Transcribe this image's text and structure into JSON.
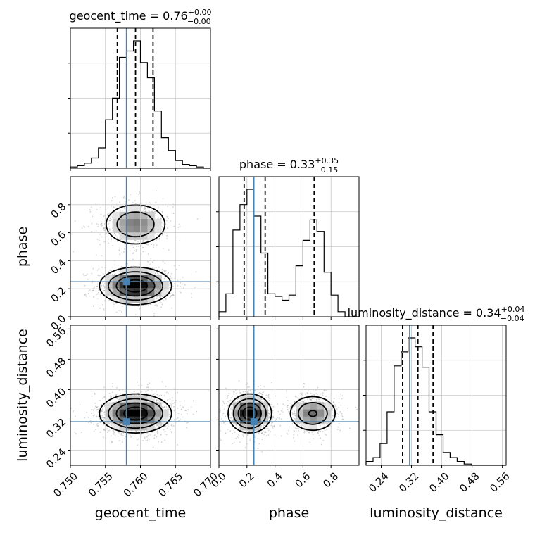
{
  "chart_data": {
    "type": "corner",
    "parameters": [
      "geocent_time",
      "phase",
      "luminosity_distance"
    ],
    "titles": [
      {
        "name": "geocent_time",
        "median": "0.76",
        "plus": "+0.00",
        "minus": "−0.00"
      },
      {
        "name": "phase",
        "median": "0.33",
        "plus": "+0.35",
        "minus": "−0.15"
      },
      {
        "name": "luminosity_distance",
        "median": "0.34",
        "plus": "+0.04",
        "minus": "−0.04"
      }
    ],
    "ranges": [
      [
        0.75,
        0.77
      ],
      [
        0.0,
        1.0
      ],
      [
        0.2,
        0.57
      ]
    ],
    "ticks": [
      {
        "values": [
          0.75,
          0.755,
          0.76,
          0.765,
          0.77
        ],
        "labels": [
          "0.750",
          "0.755",
          "0.760",
          "0.765",
          "0.770"
        ]
      },
      {
        "values": [
          0.0,
          0.2,
          0.4,
          0.6,
          0.8
        ],
        "labels": [
          "0.0",
          "0.2",
          "0.4",
          "0.6",
          "0.8"
        ]
      },
      {
        "values": [
          0.24,
          0.32,
          0.4,
          0.48,
          0.56
        ],
        "labels": [
          "0.24",
          "0.32",
          "0.40",
          "0.48",
          "0.56"
        ]
      }
    ],
    "truths": [
      0.758,
      0.25,
      0.315
    ],
    "quantiles": [
      [
        0.7567,
        0.7593,
        0.7618
      ],
      [
        0.18,
        0.33,
        0.68
      ],
      [
        0.2965,
        0.337,
        0.377
      ]
    ],
    "histograms": [
      {
        "bin_edges": [
          0.75,
          0.751,
          0.752,
          0.753,
          0.754,
          0.755,
          0.756,
          0.757,
          0.758,
          0.759,
          0.76,
          0.761,
          0.762,
          0.763,
          0.764,
          0.765,
          0.766,
          0.767,
          0.768,
          0.769,
          0.77
        ],
        "counts": [
          0.01,
          0.02,
          0.04,
          0.08,
          0.16,
          0.38,
          0.55,
          0.87,
          0.92,
          1.0,
          0.83,
          0.71,
          0.45,
          0.24,
          0.14,
          0.06,
          0.03,
          0.02,
          0.01,
          0.0
        ]
      },
      {
        "bin_edges": [
          0.0,
          0.05,
          0.1,
          0.15,
          0.2,
          0.25,
          0.3,
          0.35,
          0.4,
          0.45,
          0.5,
          0.55,
          0.6,
          0.65,
          0.7,
          0.75,
          0.8,
          0.85,
          0.9,
          0.95,
          1.0
        ],
        "counts": [
          0.04,
          0.18,
          0.68,
          0.88,
          1.0,
          0.79,
          0.5,
          0.18,
          0.16,
          0.13,
          0.17,
          0.4,
          0.6,
          0.76,
          0.67,
          0.35,
          0.17,
          0.04,
          0.0,
          0.0
        ]
      },
      {
        "bin_edges": [
          0.2,
          0.2185,
          0.237,
          0.2555,
          0.274,
          0.2925,
          0.311,
          0.3295,
          0.348,
          0.3665,
          0.385,
          0.4035,
          0.422,
          0.4405,
          0.459,
          0.4775,
          0.496,
          0.5145,
          0.533,
          0.5515,
          0.57
        ],
        "counts": [
          0.03,
          0.06,
          0.17,
          0.42,
          0.78,
          0.89,
          1.0,
          0.93,
          0.77,
          0.42,
          0.24,
          0.1,
          0.06,
          0.03,
          0.01,
          0.0,
          0.0,
          0.0,
          0.0,
          0.0
        ]
      }
    ],
    "densities": [
      {
        "x": 0,
        "y": 1,
        "components": [
          {
            "cx": 0.7593,
            "cy": 0.22,
            "sx": 0.0025,
            "sy": 0.065,
            "w": 1.0
          },
          {
            "cx": 0.7593,
            "cy": 0.66,
            "sx": 0.0024,
            "sy": 0.08,
            "w": 0.55
          }
        ]
      },
      {
        "x": 0,
        "y": 2,
        "components": [
          {
            "cx": 0.7593,
            "cy": 0.337,
            "sx": 0.0025,
            "sy": 0.025,
            "w": 1.0
          }
        ]
      },
      {
        "x": 1,
        "y": 2,
        "components": [
          {
            "cx": 0.22,
            "cy": 0.337,
            "sx": 0.075,
            "sy": 0.025,
            "w": 1.0
          },
          {
            "cx": 0.67,
            "cy": 0.337,
            "sx": 0.09,
            "sy": 0.025,
            "w": 0.58
          }
        ]
      }
    ],
    "grid": true,
    "truth_color": "#4682b4",
    "line_color": "#000000",
    "sample_color": "#9b9b9b"
  }
}
